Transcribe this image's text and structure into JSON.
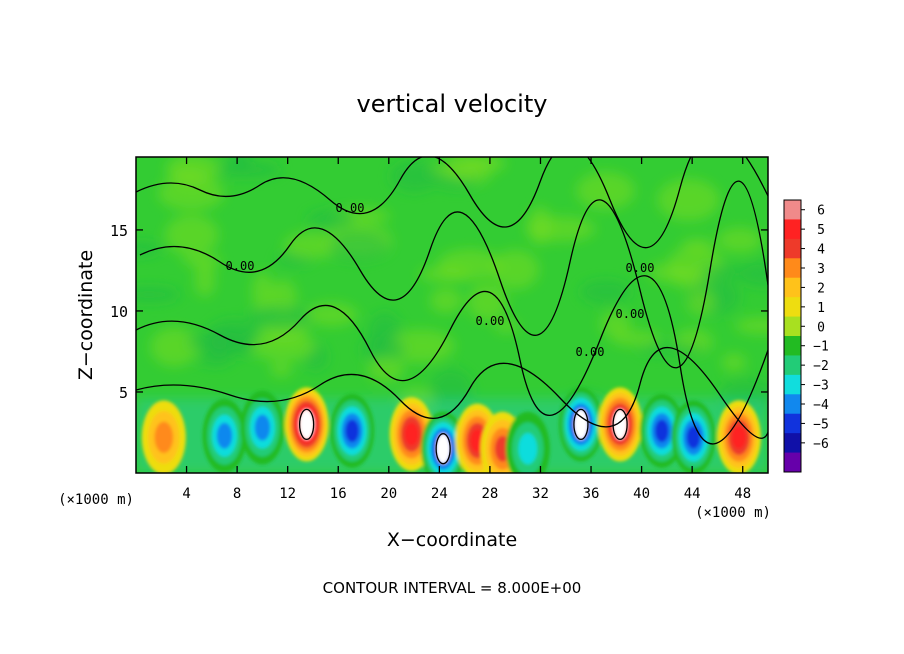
{
  "chart_data": {
    "type": "heatmap",
    "title": "vertical velocity",
    "xlabel": "X−coordinate",
    "ylabel": "Z−coordinate",
    "x_unit": "(×1000 m)",
    "y_unit": "(×1000 m)",
    "xlim": [
      0,
      50
    ],
    "ylim": [
      0,
      19.5
    ],
    "x_ticks": [
      "4",
      "8",
      "12",
      "16",
      "20",
      "24",
      "28",
      "32",
      "36",
      "40",
      "44",
      "48"
    ],
    "y_ticks": [
      "5",
      "10",
      "15"
    ],
    "colorbar": {
      "ticks": [
        "6",
        "5",
        "4",
        "3",
        "2",
        "1",
        "0",
        "−1",
        "−2",
        "−3",
        "−4",
        "−5",
        "−6"
      ],
      "colors": [
        "#f08a8a",
        "#ff2222",
        "#ee3a2a",
        "#ff8a1a",
        "#ffc21a",
        "#eedd10",
        "#a8e020",
        "#22bb22",
        "#22cc77",
        "#11dddd",
        "#1188ee",
        "#1133dd",
        "#1010a8",
        "#6600aa"
      ]
    },
    "contour_labels": [
      "0.00",
      "0.00",
      "0.00",
      "0.00",
      "0.00",
      "0.00"
    ],
    "cells": [
      {
        "x": 2.2,
        "z": 2.2,
        "w": 3.0
      },
      {
        "x": 7.0,
        "z": 2.3,
        "w": -3.6
      },
      {
        "x": 10.0,
        "z": 2.8,
        "w": -3.3
      },
      {
        "x": 13.5,
        "z": 3.0,
        "w": 6.5
      },
      {
        "x": 17.1,
        "z": 2.6,
        "w": -5.0
      },
      {
        "x": 21.8,
        "z": 2.4,
        "w": 4.2
      },
      {
        "x": 24.3,
        "z": 1.5,
        "w": -5.2
      },
      {
        "x": 27.0,
        "z": 2.0,
        "w": 4.2
      },
      {
        "x": 29.0,
        "z": 1.5,
        "w": 3.5
      },
      {
        "x": 31.0,
        "z": 1.5,
        "w": -2.8
      },
      {
        "x": 35.2,
        "z": 3.0,
        "w": -5.5
      },
      {
        "x": 38.3,
        "z": 3.0,
        "w": 6.0
      },
      {
        "x": 41.6,
        "z": 2.6,
        "w": -4.5
      },
      {
        "x": 44.1,
        "z": 2.2,
        "w": -4.8
      },
      {
        "x": 47.7,
        "z": 2.2,
        "w": 4.5
      }
    ],
    "footnote": "CONTOUR INTERVAL = 8.000E+00"
  }
}
